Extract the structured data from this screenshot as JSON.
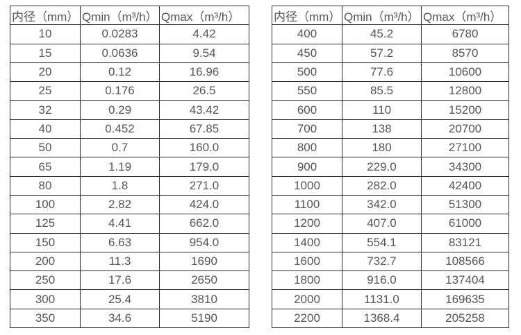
{
  "page": {
    "background": "#ffffff",
    "text_color": "#565656",
    "border_color": "#2b2b2b"
  },
  "chart_data": [
    {
      "type": "table",
      "title": "",
      "columns": [
        "内径（mm）",
        "Qmin（m³/h）",
        "Qmax（m³/h）"
      ],
      "rows": [
        [
          "10",
          "0.0283",
          "4.42"
        ],
        [
          "15",
          "0.0636",
          "9.54"
        ],
        [
          "20",
          "0.12",
          "16.96"
        ],
        [
          "25",
          "0.176",
          "26.5"
        ],
        [
          "32",
          "0.29",
          "43.42"
        ],
        [
          "40",
          "0.452",
          "67.85"
        ],
        [
          "50",
          "0.7",
          "160.0"
        ],
        [
          "65",
          "1.19",
          "179.0"
        ],
        [
          "80",
          "1.8",
          "271.0"
        ],
        [
          "100",
          "2.82",
          "424.0"
        ],
        [
          "125",
          "4.41",
          "662.0"
        ],
        [
          "150",
          "6.63",
          "954.0"
        ],
        [
          "200",
          "11.3",
          "1690"
        ],
        [
          "250",
          "17.6",
          "2650"
        ],
        [
          "300",
          "25.4",
          "3810"
        ],
        [
          "350",
          "34.6",
          "5190"
        ]
      ]
    },
    {
      "type": "table",
      "title": "",
      "columns": [
        "内径（mm）",
        "Qmin（m³/h）",
        "Qmax（m³/h）"
      ],
      "rows": [
        [
          "400",
          "45.2",
          "6780"
        ],
        [
          "450",
          "57.2",
          "8570"
        ],
        [
          "500",
          "77.6",
          "10600"
        ],
        [
          "550",
          "85.5",
          "12800"
        ],
        [
          "600",
          "110",
          "15200"
        ],
        [
          "700",
          "138",
          "20700"
        ],
        [
          "800",
          "180",
          "27100"
        ],
        [
          "900",
          "229.0",
          "34300"
        ],
        [
          "1000",
          "282.0",
          "42400"
        ],
        [
          "1100",
          "342.0",
          "51300"
        ],
        [
          "1200",
          "407.0",
          "61000"
        ],
        [
          "1400",
          "554.1",
          "83121"
        ],
        [
          "1600",
          "732.7",
          "108566"
        ],
        [
          "1800",
          "916.0",
          "137404"
        ],
        [
          "2000",
          "1131.0",
          "169635"
        ],
        [
          "2200",
          "1368.4",
          "205258"
        ]
      ]
    }
  ]
}
